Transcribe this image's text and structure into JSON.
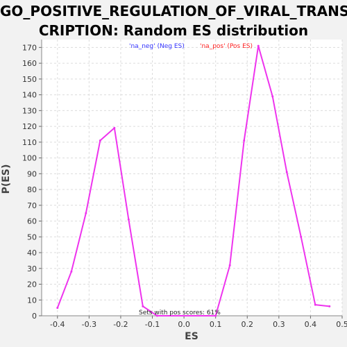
{
  "chart_data": {
    "type": "line",
    "title": "GO_POSITIVE_REGULATION_OF_VIRAL_TRANS\nCRIPTION: Random ES distribution",
    "xlabel": "ES",
    "ylabel": "P(ES)",
    "xlim": [
      -0.45,
      0.5
    ],
    "ylim": [
      0,
      175
    ],
    "xticks": [
      "-0.4",
      "-0.3",
      "-0.2",
      "-0.1",
      "0.0",
      "0.1",
      "0.2",
      "0.3",
      "0.4",
      "0.5"
    ],
    "xtick_values": [
      -0.4,
      -0.3,
      -0.2,
      -0.1,
      0.0,
      0.1,
      0.2,
      0.3,
      0.4,
      0.5
    ],
    "yticks": [
      0,
      10,
      20,
      30,
      40,
      50,
      60,
      70,
      80,
      90,
      100,
      110,
      120,
      130,
      140,
      150,
      160,
      170
    ],
    "grid": true,
    "legend": [
      {
        "label": "'na_neg' (Neg ES)",
        "color": "#3333ff"
      },
      {
        "label": "'na_pos' (Pos ES)",
        "color": "#ff2222"
      }
    ],
    "annotation": "Sets with pos scores: 61%",
    "series": [
      {
        "color": "#ee33ee",
        "x": [
          -0.4,
          -0.356,
          -0.31,
          -0.265,
          -0.22,
          -0.175,
          -0.13,
          -0.085,
          0.1,
          0.145,
          0.19,
          0.235,
          0.28,
          0.325,
          0.37,
          0.415,
          0.46
        ],
        "y": [
          5,
          28,
          65,
          111,
          119,
          61,
          6,
          0,
          0,
          32,
          111,
          171,
          139,
          91,
          50,
          7,
          6
        ]
      }
    ]
  }
}
